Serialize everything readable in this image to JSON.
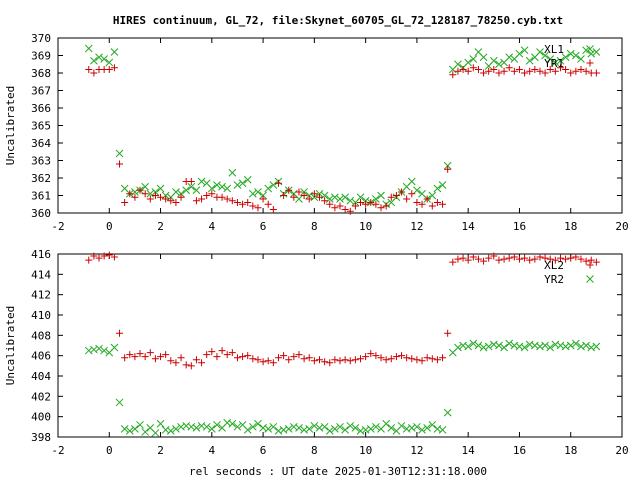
{
  "title": "HIRES continuum, GL_72, file:Skynet_60705_GL_72_128187_78250.cyb.txt",
  "xlabel": "rel seconds : UT date 2025-01-30T12:31:18.000",
  "colors": {
    "red": "#cc0000",
    "green": "#22aa22"
  },
  "chart_data": [
    {
      "type": "scatter",
      "ylabel": "Uncalibrated",
      "xlim": [
        -2,
        20
      ],
      "ylim": [
        360,
        370
      ],
      "xticks": [
        -2,
        0,
        2,
        4,
        6,
        8,
        10,
        12,
        14,
        16,
        18,
        20
      ],
      "yticks": [
        360,
        361,
        362,
        363,
        364,
        365,
        366,
        367,
        368,
        369,
        370
      ],
      "legend_position": "top-right",
      "series": [
        {
          "name": "XL1",
          "marker": "x",
          "color": "#22aa22",
          "x": [
            -0.8,
            -0.6,
            -0.4,
            -0.2,
            0.0,
            0.2,
            0.4,
            0.6,
            0.8,
            1.0,
            1.2,
            1.4,
            1.6,
            1.8,
            2.0,
            2.2,
            2.4,
            2.6,
            2.8,
            3.0,
            3.2,
            3.4,
            3.6,
            3.8,
            4.0,
            4.2,
            4.4,
            4.6,
            4.8,
            5.0,
            5.2,
            5.4,
            5.6,
            5.8,
            6.0,
            6.2,
            6.4,
            6.6,
            6.8,
            7.0,
            7.2,
            7.4,
            7.6,
            7.8,
            8.0,
            8.2,
            8.4,
            8.6,
            8.8,
            9.0,
            9.2,
            9.4,
            9.6,
            9.8,
            10.0,
            10.2,
            10.4,
            10.6,
            10.8,
            11.0,
            11.2,
            11.4,
            11.6,
            11.8,
            12.0,
            12.2,
            12.4,
            12.6,
            12.8,
            13.0,
            13.2,
            13.4,
            13.6,
            13.8,
            14.0,
            14.2,
            14.4,
            14.6,
            14.8,
            15.0,
            15.2,
            15.4,
            15.6,
            15.8,
            16.0,
            16.2,
            16.4,
            16.6,
            16.8,
            17.0,
            17.2,
            17.4,
            17.6,
            17.8,
            18.0,
            18.2,
            18.4,
            18.6,
            18.8,
            19.0
          ],
          "y": [
            369.4,
            368.7,
            368.9,
            368.8,
            368.6,
            369.2,
            363.4,
            361.4,
            361.1,
            361.2,
            361.3,
            361.5,
            361.1,
            361.2,
            361.4,
            361.0,
            360.9,
            361.2,
            361.1,
            361.3,
            361.5,
            361.3,
            361.8,
            361.7,
            361.4,
            361.6,
            361.5,
            361.4,
            362.3,
            361.6,
            361.7,
            361.9,
            361.1,
            361.2,
            361.0,
            361.4,
            361.6,
            361.8,
            361.1,
            361.3,
            361.1,
            360.8,
            361.2,
            361.0,
            360.9,
            361.1,
            361.0,
            360.8,
            360.9,
            360.8,
            360.9,
            360.7,
            360.6,
            360.9,
            360.7,
            360.6,
            360.8,
            361.0,
            360.5,
            360.6,
            360.9,
            361.2,
            361.5,
            361.8,
            361.3,
            361.1,
            360.8,
            361.0,
            361.4,
            361.6,
            362.7,
            368.2,
            368.5,
            368.3,
            368.6,
            368.8,
            369.2,
            368.9,
            368.4,
            368.7,
            368.5,
            368.6,
            368.9,
            368.8,
            369.1,
            369.3,
            368.7,
            368.9,
            369.2,
            369.0,
            368.8,
            368.6,
            368.7,
            368.9,
            369.1,
            369.0,
            368.8,
            369.3,
            369.1,
            369.2
          ],
          "note_x_skip": true
        },
        {
          "name": "YR1",
          "marker": "+",
          "color": "#cc0000",
          "x": [
            -0.8,
            -0.6,
            -0.4,
            -0.2,
            0.0,
            0.2,
            0.4,
            0.6,
            0.8,
            1.0,
            1.2,
            1.4,
            1.6,
            1.8,
            2.0,
            2.2,
            2.4,
            2.6,
            2.8,
            3.0,
            3.2,
            3.4,
            3.6,
            3.8,
            4.0,
            4.2,
            4.4,
            4.6,
            4.8,
            5.0,
            5.2,
            5.4,
            5.6,
            5.8,
            6.0,
            6.2,
            6.4,
            6.6,
            6.8,
            7.0,
            7.2,
            7.4,
            7.6,
            7.8,
            8.0,
            8.2,
            8.4,
            8.6,
            8.8,
            9.0,
            9.2,
            9.4,
            9.6,
            9.8,
            10.0,
            10.2,
            10.4,
            10.6,
            10.8,
            11.0,
            11.2,
            11.4,
            11.6,
            11.8,
            12.0,
            12.2,
            12.4,
            12.6,
            12.8,
            13.0,
            13.2,
            13.4,
            13.6,
            13.8,
            14.0,
            14.2,
            14.4,
            14.6,
            14.8,
            15.0,
            15.2,
            15.4,
            15.6,
            15.8,
            16.0,
            16.2,
            16.4,
            16.6,
            16.8,
            17.0,
            17.2,
            17.4,
            17.6,
            17.8,
            18.0,
            18.2,
            18.4,
            18.6,
            18.8,
            19.0
          ],
          "y": [
            368.2,
            368.0,
            368.2,
            368.2,
            368.2,
            368.3,
            362.8,
            360.6,
            361.1,
            360.9,
            361.3,
            361.1,
            360.8,
            361.0,
            360.9,
            360.8,
            360.7,
            360.6,
            360.9,
            361.8,
            361.8,
            360.7,
            360.8,
            361.0,
            361.1,
            360.9,
            360.9,
            360.8,
            360.7,
            360.6,
            360.5,
            360.6,
            360.4,
            360.3,
            360.8,
            360.5,
            360.2,
            361.7,
            361.0,
            361.3,
            360.9,
            361.2,
            361.0,
            360.8,
            361.1,
            360.9,
            360.7,
            360.5,
            360.3,
            360.4,
            360.2,
            360.1,
            360.4,
            360.6,
            360.5,
            360.6,
            360.5,
            360.3,
            360.4,
            360.9,
            361.0,
            361.2,
            360.8,
            361.1,
            360.6,
            360.5,
            360.8,
            360.4,
            360.6,
            360.5,
            362.5,
            367.9,
            368.1,
            368.2,
            368.1,
            368.3,
            368.2,
            368.0,
            368.1,
            368.2,
            368.0,
            368.1,
            368.3,
            368.1,
            368.2,
            368.0,
            368.1,
            368.2,
            368.1,
            368.0,
            368.2,
            368.1,
            368.3,
            368.2,
            368.0,
            368.1,
            368.2,
            368.1,
            368.0,
            368.0
          ]
        }
      ]
    },
    {
      "type": "scatter",
      "ylabel": "Uncalibrated",
      "xlim": [
        -2,
        20
      ],
      "ylim": [
        398,
        416
      ],
      "xticks": [
        -2,
        0,
        2,
        4,
        6,
        8,
        10,
        12,
        14,
        16,
        18,
        20
      ],
      "yticks": [
        398,
        400,
        402,
        404,
        406,
        408,
        410,
        412,
        414,
        416
      ],
      "legend_position": "top-right",
      "series": [
        {
          "name": "XL2",
          "marker": "+",
          "color": "#cc0000",
          "x": [
            -0.8,
            -0.6,
            -0.4,
            -0.2,
            0.0,
            0.2,
            0.4,
            0.6,
            0.8,
            1.0,
            1.2,
            1.4,
            1.6,
            1.8,
            2.0,
            2.2,
            2.4,
            2.6,
            2.8,
            3.0,
            3.2,
            3.4,
            3.6,
            3.8,
            4.0,
            4.2,
            4.4,
            4.6,
            4.8,
            5.0,
            5.2,
            5.4,
            5.6,
            5.8,
            6.0,
            6.2,
            6.4,
            6.6,
            6.8,
            7.0,
            7.2,
            7.4,
            7.6,
            7.8,
            8.0,
            8.2,
            8.4,
            8.6,
            8.8,
            9.0,
            9.2,
            9.4,
            9.6,
            9.8,
            10.0,
            10.2,
            10.4,
            10.6,
            10.8,
            11.0,
            11.2,
            11.4,
            11.6,
            11.8,
            12.0,
            12.2,
            12.4,
            12.6,
            12.8,
            13.0,
            13.2,
            13.4,
            13.6,
            13.8,
            14.0,
            14.2,
            14.4,
            14.6,
            14.8,
            15.0,
            15.2,
            15.4,
            15.6,
            15.8,
            16.0,
            16.2,
            16.4,
            16.6,
            16.8,
            17.0,
            17.2,
            17.4,
            17.6,
            17.8,
            18.0,
            18.2,
            18.4,
            18.6,
            18.8,
            19.0
          ],
          "y": [
            415.4,
            415.8,
            415.6,
            415.8,
            415.9,
            415.7,
            408.2,
            405.8,
            406.1,
            405.9,
            406.2,
            405.9,
            406.3,
            405.7,
            405.9,
            406.1,
            405.5,
            405.3,
            405.8,
            405.1,
            405.0,
            405.6,
            405.3,
            406.1,
            406.4,
            405.9,
            406.5,
            406.1,
            406.3,
            405.8,
            405.9,
            406.0,
            405.7,
            405.6,
            405.4,
            405.5,
            405.3,
            405.8,
            406.0,
            405.6,
            405.9,
            406.1,
            405.7,
            405.8,
            405.5,
            405.6,
            405.4,
            405.3,
            405.6,
            405.5,
            405.6,
            405.5,
            405.6,
            405.7,
            405.9,
            406.2,
            406.0,
            405.8,
            405.6,
            405.7,
            405.9,
            406.0,
            405.8,
            405.7,
            405.6,
            405.5,
            405.8,
            405.7,
            405.6,
            405.8,
            408.2,
            415.2,
            415.5,
            415.6,
            415.4,
            415.7,
            415.5,
            415.3,
            415.6,
            415.8,
            415.4,
            415.5,
            415.6,
            415.7,
            415.5,
            415.6,
            415.4,
            415.5,
            415.7,
            415.6,
            415.5,
            415.4,
            415.6,
            415.5,
            415.6,
            415.7,
            415.5,
            415.3,
            415.4,
            415.2
          ],
          "note_x_skip": true
        },
        {
          "name": "YR2",
          "marker": "x",
          "color": "#22aa22",
          "x": [
            -0.8,
            -0.6,
            -0.4,
            -0.2,
            0.0,
            0.2,
            0.4,
            0.6,
            0.8,
            1.0,
            1.2,
            1.4,
            1.6,
            1.8,
            2.0,
            2.2,
            2.4,
            2.6,
            2.8,
            3.0,
            3.2,
            3.4,
            3.6,
            3.8,
            4.0,
            4.2,
            4.4,
            4.6,
            4.8,
            5.0,
            5.2,
            5.4,
            5.6,
            5.8,
            6.0,
            6.2,
            6.4,
            6.6,
            6.8,
            7.0,
            7.2,
            7.4,
            7.6,
            7.8,
            8.0,
            8.2,
            8.4,
            8.6,
            8.8,
            9.0,
            9.2,
            9.4,
            9.6,
            9.8,
            10.0,
            10.2,
            10.4,
            10.6,
            10.8,
            11.0,
            11.2,
            11.4,
            11.6,
            11.8,
            12.0,
            12.2,
            12.4,
            12.6,
            12.8,
            13.0,
            13.2,
            13.4,
            13.6,
            13.8,
            14.0,
            14.2,
            14.4,
            14.6,
            14.8,
            15.0,
            15.2,
            15.4,
            15.6,
            15.8,
            16.0,
            16.2,
            16.4,
            16.6,
            16.8,
            17.0,
            17.2,
            17.4,
            17.6,
            17.8,
            18.0,
            18.2,
            18.4,
            18.6,
            18.8,
            19.0
          ],
          "y": [
            406.5,
            406.6,
            406.7,
            406.5,
            406.3,
            406.8,
            401.4,
            398.8,
            398.6,
            398.8,
            399.2,
            398.5,
            398.9,
            398.4,
            399.3,
            398.7,
            398.6,
            398.8,
            399.0,
            399.1,
            399.0,
            398.9,
            399.1,
            399.0,
            398.8,
            399.2,
            398.9,
            399.4,
            399.3,
            399.0,
            399.2,
            398.7,
            399.0,
            399.3,
            398.9,
            398.8,
            399.0,
            398.6,
            398.7,
            398.8,
            399.0,
            398.9,
            398.7,
            398.8,
            399.1,
            398.9,
            399.0,
            398.6,
            398.8,
            399.0,
            398.7,
            399.1,
            398.9,
            398.6,
            398.7,
            398.8,
            399.0,
            398.8,
            399.3,
            398.9,
            398.6,
            399.1,
            398.8,
            398.9,
            399.0,
            398.7,
            398.9,
            399.2,
            398.8,
            398.7,
            400.4,
            406.3,
            406.8,
            407.0,
            406.9,
            407.2,
            407.0,
            406.8,
            406.9,
            407.1,
            407.0,
            406.8,
            407.2,
            407.0,
            406.9,
            406.8,
            407.1,
            407.0,
            406.9,
            407.0,
            406.8,
            407.1,
            407.0,
            406.9,
            407.0,
            407.2,
            406.9,
            407.0,
            406.8,
            406.9
          ]
        }
      ]
    }
  ]
}
